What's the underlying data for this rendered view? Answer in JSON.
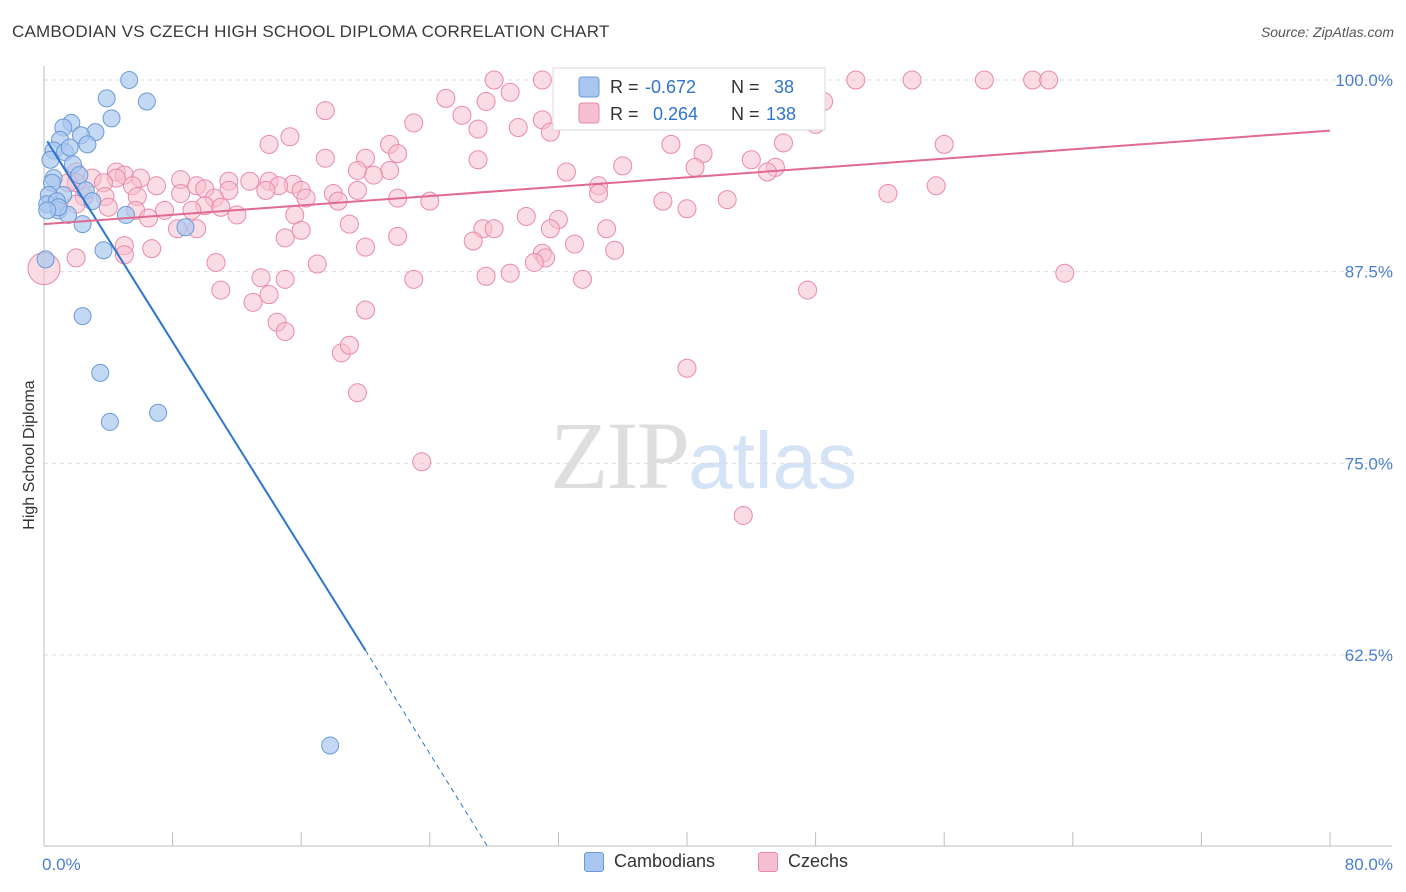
{
  "title": "CAMBODIAN VS CZECH HIGH SCHOOL DIPLOMA CORRELATION CHART",
  "source": "Source: ZipAtlas.com",
  "watermark": {
    "zip": "ZIP",
    "atlas": "atlas"
  },
  "colors": {
    "cambodian_fill": "#a9c7ee",
    "cambodian_stroke": "#6a9bd8",
    "cambodian_line": "#2e74d0",
    "czech_fill": "#f6bfd0",
    "czech_stroke": "#e98aa8",
    "czech_line": "#e06a92",
    "axis_text": "#4a7fd0",
    "grid": "#dcdcdc"
  },
  "legend": {
    "cambodian": {
      "r_label": "R = ",
      "r_value": "-0.672",
      "n_label": "N = ",
      "n_value": "38"
    },
    "czech": {
      "r_label": "R = ",
      "r_value": "0.264",
      "n_label": "N = ",
      "n_value": "138"
    }
  },
  "chart_data": {
    "type": "scatter",
    "title": "CAMBODIAN VS CZECH HIGH SCHOOL DIPLOMA CORRELATION CHART",
    "xlabel": "",
    "ylabel": "High School Diploma",
    "xlim": [
      0,
      80
    ],
    "ylim": [
      50,
      100.5
    ],
    "x_tick_labels": [
      "0.0%",
      "80.0%"
    ],
    "y_ticks": [
      62.5,
      75.0,
      87.5,
      100.0
    ],
    "y_tick_labels": [
      "62.5%",
      "75.0%",
      "87.5%",
      "100.0%"
    ],
    "legend_position": "bottom-center",
    "series": [
      {
        "name": "Cambodians",
        "r": -0.672,
        "n": 38,
        "trend": {
          "x0": 0.2,
          "y0": 96.0,
          "x1": 20.0,
          "y1": 62.8,
          "dash_x1": 27.6,
          "dash_y1": 50.0
        },
        "points": [
          [
            5.3,
            100.0
          ],
          [
            3.9,
            98.8
          ],
          [
            6.4,
            98.6
          ],
          [
            4.2,
            97.5
          ],
          [
            1.7,
            97.2
          ],
          [
            1.2,
            96.9
          ],
          [
            3.2,
            96.6
          ],
          [
            2.3,
            96.4
          ],
          [
            1.0,
            96.1
          ],
          [
            2.7,
            95.8
          ],
          [
            0.6,
            95.4
          ],
          [
            1.3,
            95.3
          ],
          [
            1.6,
            95.6
          ],
          [
            0.4,
            94.8
          ],
          [
            1.8,
            94.5
          ],
          [
            2.2,
            93.8
          ],
          [
            0.6,
            93.6
          ],
          [
            0.5,
            93.3
          ],
          [
            1.2,
            92.5
          ],
          [
            0.3,
            92.5
          ],
          [
            2.6,
            92.8
          ],
          [
            3.0,
            92.1
          ],
          [
            0.2,
            91.9
          ],
          [
            0.8,
            92.1
          ],
          [
            0.9,
            91.5
          ],
          [
            1.5,
            91.2
          ],
          [
            2.4,
            90.6
          ],
          [
            5.1,
            91.2
          ],
          [
            0.9,
            91.7
          ],
          [
            8.8,
            90.4
          ],
          [
            3.7,
            88.9
          ],
          [
            0.1,
            88.3
          ],
          [
            2.4,
            84.6
          ],
          [
            3.5,
            80.9
          ],
          [
            4.1,
            77.7
          ],
          [
            7.1,
            78.3
          ],
          [
            17.8,
            56.6
          ],
          [
            0.2,
            91.5
          ]
        ]
      },
      {
        "name": "Czechs",
        "r": 0.264,
        "n": 138,
        "trend": {
          "x0": 0.0,
          "y0": 90.6,
          "x1": 80.0,
          "y1": 96.7
        },
        "points": [
          [
            28.0,
            100.0
          ],
          [
            31.0,
            100.0
          ],
          [
            44.5,
            100.0
          ],
          [
            46.5,
            100.0
          ],
          [
            50.5,
            100.0
          ],
          [
            54.0,
            100.0
          ],
          [
            58.5,
            100.0
          ],
          [
            61.5,
            100.0
          ],
          [
            62.5,
            100.0
          ],
          [
            29.0,
            99.2
          ],
          [
            25.0,
            98.8
          ],
          [
            27.5,
            98.6
          ],
          [
            48.5,
            98.6
          ],
          [
            48.0,
            98.1
          ],
          [
            17.5,
            98.0
          ],
          [
            33.5,
            97.9
          ],
          [
            26.0,
            97.7
          ],
          [
            31.0,
            97.4
          ],
          [
            23.0,
            97.2
          ],
          [
            48.0,
            97.1
          ],
          [
            29.5,
            96.9
          ],
          [
            27.0,
            96.8
          ],
          [
            31.5,
            96.6
          ],
          [
            15.3,
            96.3
          ],
          [
            14.0,
            95.8
          ],
          [
            21.5,
            95.8
          ],
          [
            39.0,
            95.8
          ],
          [
            56.0,
            95.8
          ],
          [
            46.0,
            95.9
          ],
          [
            22.0,
            95.2
          ],
          [
            41.0,
            95.2
          ],
          [
            17.5,
            94.9
          ],
          [
            27.0,
            94.8
          ],
          [
            20.0,
            94.9
          ],
          [
            44.0,
            94.8
          ],
          [
            36.0,
            94.4
          ],
          [
            45.5,
            94.3
          ],
          [
            40.5,
            94.3
          ],
          [
            21.5,
            94.1
          ],
          [
            19.5,
            94.1
          ],
          [
            32.5,
            94.0
          ],
          [
            45.0,
            94.0
          ],
          [
            20.5,
            93.8
          ],
          [
            4.5,
            94.0
          ],
          [
            2.0,
            94.0
          ],
          [
            5.0,
            93.8
          ],
          [
            6.0,
            93.6
          ],
          [
            3.0,
            93.6
          ],
          [
            4.5,
            93.6
          ],
          [
            8.5,
            93.5
          ],
          [
            11.5,
            93.4
          ],
          [
            12.8,
            93.4
          ],
          [
            14.0,
            93.4
          ],
          [
            15.5,
            93.2
          ],
          [
            14.6,
            93.1
          ],
          [
            34.5,
            93.1
          ],
          [
            55.5,
            93.1
          ],
          [
            2.0,
            93.3
          ],
          [
            3.7,
            93.3
          ],
          [
            1.5,
            93.3
          ],
          [
            5.5,
            93.1
          ],
          [
            7.0,
            93.1
          ],
          [
            9.5,
            93.1
          ],
          [
            10.0,
            92.9
          ],
          [
            11.5,
            92.8
          ],
          [
            13.8,
            92.8
          ],
          [
            8.5,
            92.6
          ],
          [
            16.0,
            92.8
          ],
          [
            18.0,
            92.6
          ],
          [
            19.5,
            92.8
          ],
          [
            52.5,
            92.6
          ],
          [
            34.5,
            92.6
          ],
          [
            5.8,
            92.4
          ],
          [
            3.8,
            92.4
          ],
          [
            2.5,
            92.4
          ],
          [
            10.6,
            92.3
          ],
          [
            16.3,
            92.3
          ],
          [
            22.0,
            92.3
          ],
          [
            42.5,
            92.2
          ],
          [
            38.5,
            92.1
          ],
          [
            18.3,
            92.1
          ],
          [
            24.0,
            92.1
          ],
          [
            2.0,
            91.9
          ],
          [
            10.0,
            91.8
          ],
          [
            11.0,
            91.7
          ],
          [
            4.0,
            91.7
          ],
          [
            40.0,
            91.6
          ],
          [
            5.7,
            91.5
          ],
          [
            7.5,
            91.5
          ],
          [
            9.2,
            91.5
          ],
          [
            12.0,
            91.2
          ],
          [
            15.6,
            91.2
          ],
          [
            30.0,
            91.1
          ],
          [
            32.0,
            90.9
          ],
          [
            6.5,
            91.0
          ],
          [
            19.0,
            90.6
          ],
          [
            31.5,
            90.3
          ],
          [
            9.5,
            90.3
          ],
          [
            8.3,
            90.3
          ],
          [
            16.0,
            90.2
          ],
          [
            27.3,
            90.3
          ],
          [
            28.0,
            90.3
          ],
          [
            35.0,
            90.3
          ],
          [
            22.0,
            89.8
          ],
          [
            15.0,
            89.7
          ],
          [
            26.7,
            89.5
          ],
          [
            5.0,
            89.2
          ],
          [
            6.7,
            89.0
          ],
          [
            20.0,
            89.1
          ],
          [
            33.0,
            89.3
          ],
          [
            31.0,
            88.7
          ],
          [
            31.2,
            88.4
          ],
          [
            30.5,
            88.1
          ],
          [
            17.0,
            88.0
          ],
          [
            5.0,
            88.6
          ],
          [
            2.0,
            88.4
          ],
          [
            10.7,
            88.1
          ],
          [
            0.0,
            87.7
          ],
          [
            13.5,
            87.1
          ],
          [
            15.0,
            87.0
          ],
          [
            23.0,
            87.0
          ],
          [
            27.5,
            87.2
          ],
          [
            33.5,
            87.0
          ],
          [
            35.5,
            88.9
          ],
          [
            29.0,
            87.4
          ],
          [
            63.5,
            87.4
          ],
          [
            47.5,
            86.3
          ],
          [
            11.0,
            86.3
          ],
          [
            14.0,
            86.0
          ],
          [
            13.0,
            85.5
          ],
          [
            20.0,
            85.0
          ],
          [
            14.5,
            84.2
          ],
          [
            15.0,
            83.6
          ],
          [
            18.5,
            82.2
          ],
          [
            19.0,
            82.7
          ],
          [
            40.0,
            81.2
          ],
          [
            19.5,
            79.6
          ],
          [
            23.5,
            75.1
          ],
          [
            43.5,
            71.6
          ]
        ]
      }
    ]
  }
}
